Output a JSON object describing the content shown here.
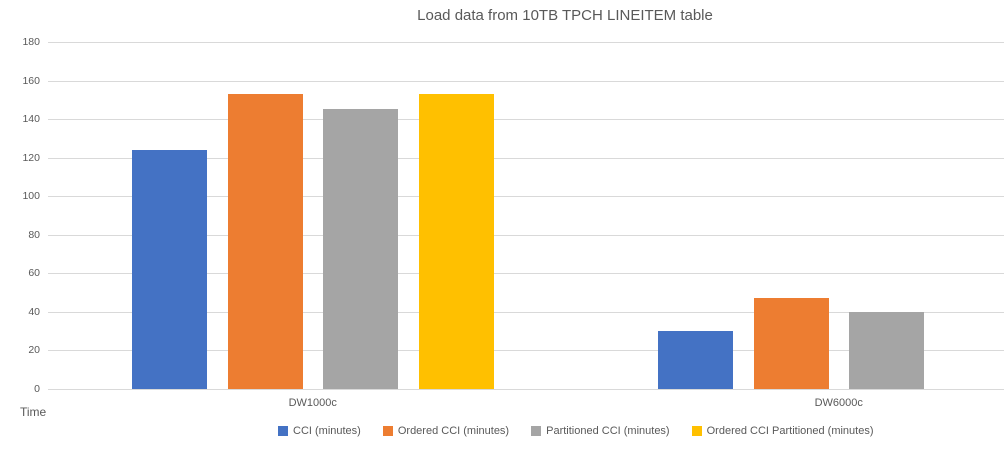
{
  "chart_data": {
    "type": "bar",
    "title": "Load data from 10TB TPCH LINEITEM table",
    "ylabel": "Time",
    "categories": [
      "DW1000c",
      "DW6000c"
    ],
    "series": [
      {
        "name": "CCI (minutes)",
        "color": "#4472C4",
        "values": [
          124,
          30
        ]
      },
      {
        "name": "Ordered CCI (minutes)",
        "color": "#ED7D31",
        "values": [
          153,
          47
        ]
      },
      {
        "name": "Partitioned CCI (minutes)",
        "color": "#A5A5A5",
        "values": [
          145,
          40
        ]
      },
      {
        "name": "Ordered CCI Partitioned (minutes)",
        "color": "#FFC000",
        "values": [
          153,
          null
        ]
      }
    ],
    "ylim": [
      0,
      180
    ],
    "yticks": [
      0,
      20,
      40,
      60,
      80,
      100,
      120,
      140,
      160,
      180
    ],
    "grid": true,
    "legend_position": "bottom",
    "colors": {
      "text": "#595959",
      "gridline": "#d9d9d9",
      "background": "#ffffff"
    }
  }
}
